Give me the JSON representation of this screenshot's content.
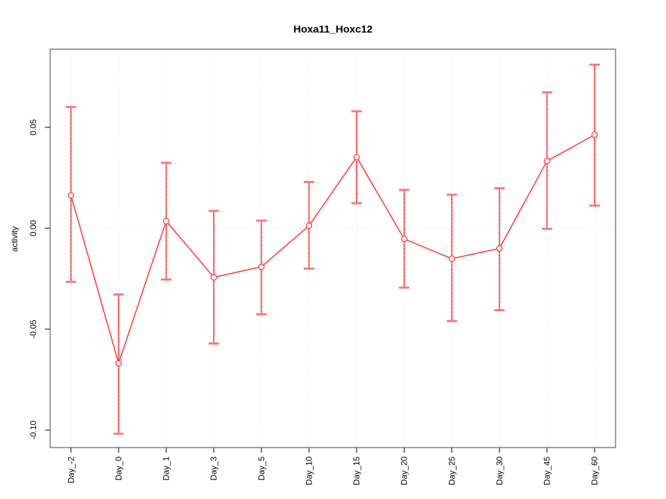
{
  "chart_data": {
    "type": "line",
    "title": "Hoxa11_Hoxc12",
    "xlabel": "",
    "ylabel": "activity",
    "categories": [
      "Day_-2",
      "Day_0",
      "Day_1",
      "Day_3",
      "Day_5",
      "Day_10",
      "Day_15",
      "Day_20",
      "Day_25",
      "Day_30",
      "Day_45",
      "Day_60"
    ],
    "series": [
      {
        "name": "Hoxa11_Hoxc12 activity",
        "values": [
          0.0163,
          -0.0669,
          0.0035,
          -0.0243,
          -0.0191,
          0.0012,
          0.0352,
          -0.0053,
          -0.0151,
          -0.01,
          0.0333,
          0.0463
        ],
        "lower": [
          -0.0266,
          -0.1018,
          -0.0254,
          -0.0571,
          -0.0426,
          -0.02,
          0.0124,
          -0.0294,
          -0.046,
          -0.0406,
          -0.0003,
          0.0112
        ],
        "upper": [
          0.0601,
          -0.0328,
          0.0324,
          0.0086,
          0.0038,
          0.0229,
          0.0579,
          0.019,
          0.0166,
          0.0198,
          0.0673,
          0.081
        ]
      }
    ],
    "y_ticks": [
      {
        "value": 0.05,
        "label": "0.05"
      },
      {
        "value": 0.0,
        "label": "0.00"
      },
      {
        "value": -0.05,
        "label": "-0.05"
      },
      {
        "value": -0.1,
        "label": "-0.10"
      }
    ],
    "ylim": [
      -0.1087,
      0.0887
    ],
    "grid": {
      "vertical": "dotted at each category",
      "horizontal": "dotted at 0.00"
    },
    "legend": "none",
    "marker": "open-circle",
    "colors": {
      "line": "#ff3b3b",
      "error_bar": "#fa7878",
      "error_bar_dash": "#ff3333",
      "marker_stroke": "#ff3b3b",
      "marker_fill": "#ffffff",
      "grid": "#dcdcdc",
      "box": "#8f8f8f",
      "tick": "#4d4d4d",
      "background": "#ffffff"
    }
  }
}
